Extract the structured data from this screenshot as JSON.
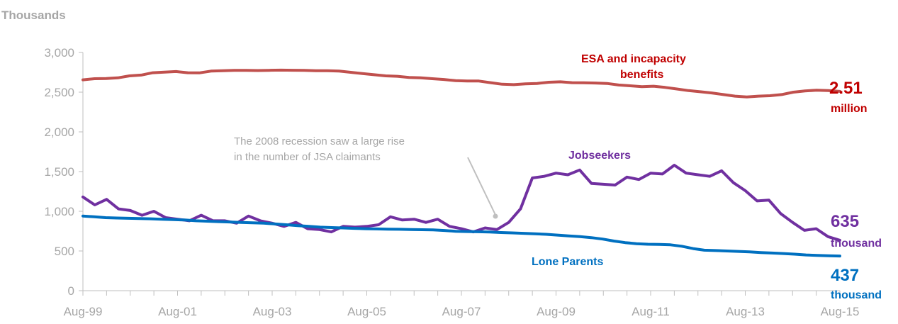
{
  "chart_data": {
    "type": "line",
    "ylabel": "Thousands",
    "ylim": [
      0,
      3000
    ],
    "yticks": [
      0,
      500,
      1000,
      1500,
      2000,
      2500,
      3000
    ],
    "ytick_labels": [
      "0",
      "500",
      "1,000",
      "1,500",
      "2,000",
      "2,500",
      "3,000"
    ],
    "x_start": "1999-08",
    "x_step_months": 3,
    "xtick_labels": [
      "Aug-99",
      "Aug-01",
      "Aug-03",
      "Aug-05",
      "Aug-07",
      "Aug-09",
      "Aug-11",
      "Aug-13",
      "Aug-15"
    ],
    "grid": false,
    "series": [
      {
        "name": "ESA and incapacity benefits",
        "color": "#c0504d",
        "values": [
          2655,
          2670,
          2672,
          2680,
          2705,
          2715,
          2745,
          2752,
          2760,
          2745,
          2743,
          2765,
          2770,
          2775,
          2774,
          2772,
          2775,
          2778,
          2776,
          2774,
          2770,
          2770,
          2765,
          2750,
          2735,
          2720,
          2705,
          2700,
          2685,
          2680,
          2670,
          2660,
          2645,
          2640,
          2640,
          2620,
          2600,
          2595,
          2605,
          2610,
          2625,
          2630,
          2620,
          2618,
          2615,
          2610,
          2590,
          2580,
          2570,
          2575,
          2560,
          2540,
          2520,
          2505,
          2490,
          2470,
          2450,
          2440,
          2450,
          2455,
          2470,
          2500,
          2515,
          2525,
          2520,
          2510
        ]
      },
      {
        "name": "Jobseekers",
        "color": "#7030a0",
        "values": [
          1180,
          1080,
          1150,
          1030,
          1010,
          950,
          1000,
          920,
          900,
          880,
          950,
          880,
          880,
          850,
          940,
          880,
          850,
          810,
          860,
          780,
          770,
          740,
          810,
          800,
          810,
          830,
          930,
          890,
          900,
          860,
          900,
          810,
          780,
          740,
          790,
          770,
          860,
          1030,
          1420,
          1440,
          1480,
          1460,
          1520,
          1350,
          1340,
          1330,
          1430,
          1400,
          1480,
          1470,
          1580,
          1480,
          1460,
          1440,
          1510,
          1360,
          1260,
          1130,
          1140,
          970,
          860,
          760,
          780,
          680,
          635
        ]
      },
      {
        "name": "Lone Parents",
        "color": "#0070c0",
        "values": [
          940,
          930,
          920,
          915,
          912,
          908,
          905,
          900,
          895,
          890,
          880,
          875,
          870,
          865,
          860,
          855,
          850,
          840,
          830,
          820,
          810,
          800,
          795,
          790,
          785,
          780,
          778,
          775,
          773,
          770,
          768,
          765,
          758,
          748,
          745,
          742,
          738,
          732,
          728,
          722,
          716,
          710,
          700,
          690,
          680,
          668,
          650,
          625,
          605,
          592,
          585,
          582,
          578,
          560,
          530,
          510,
          505,
          500,
          495,
          488,
          480,
          474,
          468,
          460,
          450,
          445,
          440,
          437
        ]
      }
    ],
    "end_labels": [
      {
        "value_text": "2.51",
        "unit_text": "million"
      },
      {
        "value_text": "635",
        "unit_text": "thousand"
      },
      {
        "value_text": "437",
        "unit_text": "thousand"
      }
    ],
    "series_labels": [
      "ESA and incapacity",
      "benefits",
      "Jobseekers",
      "Lone Parents"
    ],
    "annotation": {
      "lines": [
        "The 2008 recession saw a large rise",
        "in the number of JSA claimants"
      ]
    }
  }
}
